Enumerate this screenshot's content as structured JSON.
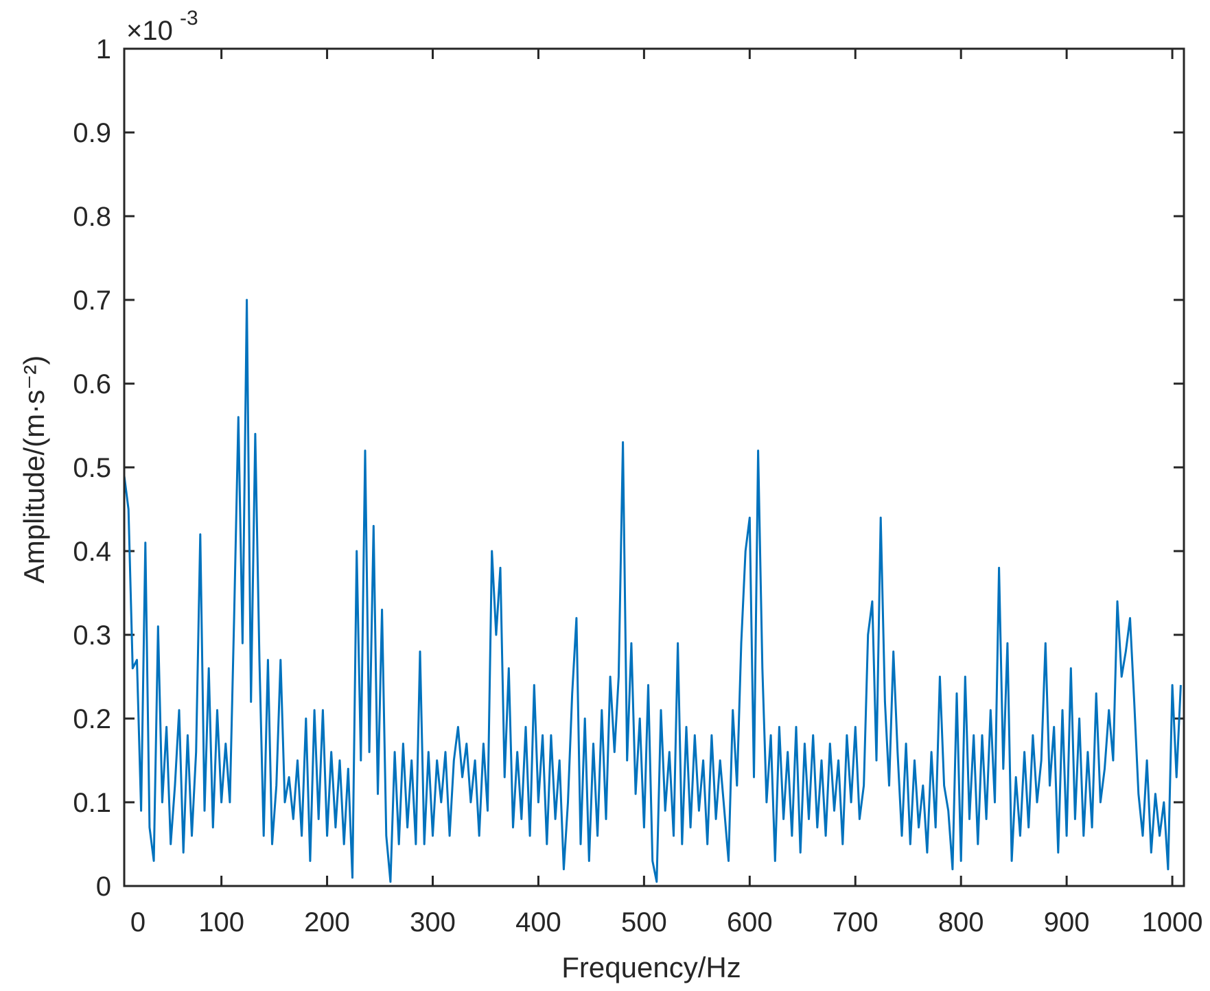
{
  "chart_data": {
    "type": "line",
    "title": "",
    "xlabel": "Frequency/Hz",
    "ylabel": "Amplitude/(m·s⁻²)",
    "y_exponent_label": "×10",
    "y_exponent_power": "-3",
    "xlim": [
      8,
      1011
    ],
    "ylim": [
      0,
      1
    ],
    "x_ticks": [
      0,
      100,
      200,
      300,
      400,
      500,
      600,
      700,
      800,
      900,
      1000
    ],
    "x_tick_labels": [
      "0",
      "100",
      "200",
      "300",
      "400",
      "500",
      "600",
      "700",
      "800",
      "900",
      "1000"
    ],
    "y_ticks": [
      0,
      0.1,
      0.2,
      0.3,
      0.4,
      0.5,
      0.6,
      0.7,
      0.8,
      0.9,
      1
    ],
    "y_tick_labels": [
      "0",
      "0.1",
      "0.2",
      "0.3",
      "0.4",
      "0.5",
      "0.6",
      "0.7",
      "0.8",
      "0.9",
      "1"
    ],
    "grid": false,
    "line_color": "#0072BD",
    "series": [
      {
        "x_start": 8,
        "x_step": 4,
        "values": [
          0.49,
          0.45,
          0.26,
          0.27,
          0.09,
          0.41,
          0.07,
          0.03,
          0.31,
          0.1,
          0.19,
          0.05,
          0.12,
          0.21,
          0.04,
          0.18,
          0.06,
          0.16,
          0.42,
          0.09,
          0.26,
          0.07,
          0.21,
          0.1,
          0.17,
          0.1,
          0.32,
          0.56,
          0.29,
          0.7,
          0.22,
          0.54,
          0.27,
          0.06,
          0.27,
          0.05,
          0.12,
          0.27,
          0.1,
          0.13,
          0.08,
          0.15,
          0.06,
          0.2,
          0.03,
          0.21,
          0.08,
          0.21,
          0.06,
          0.16,
          0.07,
          0.15,
          0.05,
          0.14,
          0.01,
          0.4,
          0.15,
          0.52,
          0.16,
          0.43,
          0.11,
          0.33,
          0.06,
          0.005,
          0.16,
          0.05,
          0.17,
          0.07,
          0.15,
          0.05,
          0.28,
          0.05,
          0.16,
          0.06,
          0.15,
          0.1,
          0.16,
          0.06,
          0.15,
          0.19,
          0.13,
          0.17,
          0.1,
          0.15,
          0.06,
          0.17,
          0.09,
          0.4,
          0.3,
          0.38,
          0.13,
          0.26,
          0.07,
          0.16,
          0.08,
          0.19,
          0.06,
          0.24,
          0.1,
          0.18,
          0.05,
          0.18,
          0.08,
          0.15,
          0.02,
          0.1,
          0.23,
          0.32,
          0.05,
          0.2,
          0.03,
          0.17,
          0.06,
          0.21,
          0.08,
          0.25,
          0.16,
          0.25,
          0.53,
          0.15,
          0.29,
          0.11,
          0.2,
          0.07,
          0.24,
          0.03,
          0.005,
          0.21,
          0.09,
          0.16,
          0.06,
          0.29,
          0.05,
          0.19,
          0.07,
          0.18,
          0.09,
          0.15,
          0.05,
          0.18,
          0.08,
          0.15,
          0.09,
          0.03,
          0.21,
          0.12,
          0.29,
          0.4,
          0.44,
          0.13,
          0.52,
          0.26,
          0.1,
          0.18,
          0.03,
          0.19,
          0.08,
          0.16,
          0.06,
          0.19,
          0.04,
          0.17,
          0.08,
          0.18,
          0.07,
          0.15,
          0.06,
          0.17,
          0.09,
          0.15,
          0.05,
          0.18,
          0.1,
          0.19,
          0.08,
          0.12,
          0.3,
          0.34,
          0.15,
          0.44,
          0.22,
          0.12,
          0.28,
          0.16,
          0.06,
          0.17,
          0.05,
          0.15,
          0.07,
          0.12,
          0.04,
          0.16,
          0.07,
          0.25,
          0.12,
          0.09,
          0.02,
          0.23,
          0.03,
          0.25,
          0.08,
          0.18,
          0.05,
          0.18,
          0.08,
          0.21,
          0.1,
          0.38,
          0.14,
          0.29,
          0.03,
          0.13,
          0.06,
          0.16,
          0.07,
          0.18,
          0.1,
          0.15,
          0.29,
          0.12,
          0.19,
          0.04,
          0.21,
          0.06,
          0.26,
          0.08,
          0.2,
          0.06,
          0.16,
          0.07,
          0.23,
          0.1,
          0.14,
          0.21,
          0.15,
          0.34,
          0.25,
          0.28,
          0.32,
          0.22,
          0.11,
          0.06,
          0.15,
          0.04,
          0.11,
          0.06,
          0.1,
          0.02,
          0.24,
          0.13,
          0.24
        ]
      }
    ]
  }
}
